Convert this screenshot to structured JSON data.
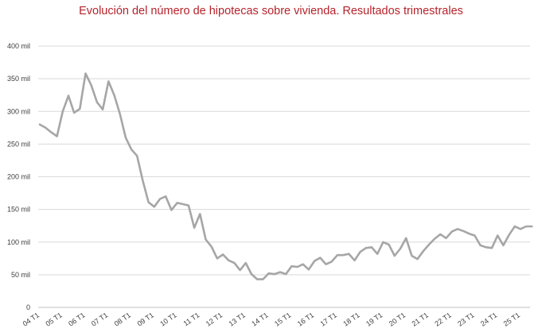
{
  "chart_data": {
    "type": "line",
    "title": "Evolución del número de hipotecas sobre vivienda. Resultados trimestrales",
    "xlabel": "",
    "ylabel": "",
    "ylim": [
      0,
      400000
    ],
    "y_ticks": [
      {
        "value": 0,
        "label": "0"
      },
      {
        "value": 50000,
        "label": "50 mil"
      },
      {
        "value": 100000,
        "label": "100 mil"
      },
      {
        "value": 150000,
        "label": "150 mil"
      },
      {
        "value": 200000,
        "label": "200 mil"
      },
      {
        "value": 250000,
        "label": "250 mil"
      },
      {
        "value": 300000,
        "label": "300 mil"
      },
      {
        "value": 350000,
        "label": "350 mil"
      },
      {
        "value": 400000,
        "label": "400 mil"
      }
    ],
    "x_ticks": [
      "04 T1",
      "05 T1",
      "06 T1",
      "07 T1",
      "08 T1",
      "09 T1",
      "10 T1",
      "11 T1",
      "12 T1",
      "13 T1",
      "14 T1",
      "15 T1",
      "16 T1",
      "17 T1",
      "18 T1",
      "19 T1",
      "20 T1",
      "21 T1",
      "22 T1",
      "23 T1",
      "24 T1",
      "25 T1"
    ],
    "grid": true,
    "line_color": "#a6a6a6",
    "grid_color": "#d9d9d9",
    "title_color": "#b5232b",
    "series": [
      {
        "values": [
          280000,
          275000,
          268000,
          262000,
          300000,
          324000,
          298000,
          304000,
          358000,
          340000,
          314000,
          303000,
          346000,
          325000,
          296000,
          260000,
          242000,
          232000,
          194000,
          161000,
          154000,
          166000,
          170000,
          149000,
          160000,
          158000,
          156000,
          122000,
          143000,
          104000,
          93000,
          75000,
          81000,
          72000,
          68000,
          57000,
          68000,
          51000,
          43000,
          43000,
          52000,
          51000,
          54000,
          51000,
          63000,
          62000,
          66000,
          58000,
          71000,
          76000,
          66000,
          70000,
          80000,
          80000,
          82000,
          72000,
          85000,
          91000,
          92000,
          82000,
          100000,
          96000,
          79000,
          90000,
          106000,
          79000,
          74000,
          86000,
          96000,
          105000,
          112000,
          106000,
          116000,
          120000,
          117000,
          113000,
          110000,
          95000,
          92000,
          91000,
          110000,
          95000,
          111000,
          124000,
          120000,
          124000,
          124000
        ]
      }
    ]
  }
}
